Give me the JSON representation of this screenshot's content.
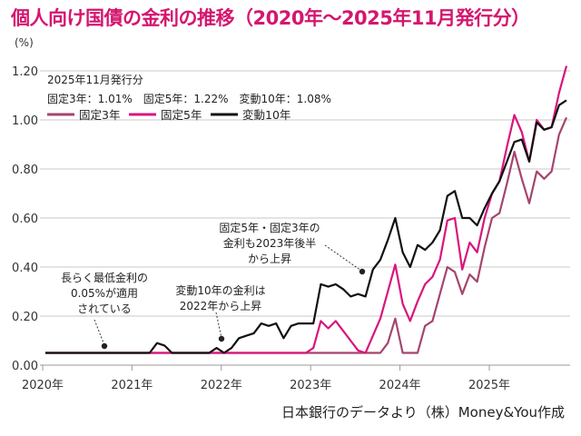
{
  "title": "個人向け国債の金利の推移（2020年～2025年11月発行分）",
  "unit_label": "(%)",
  "latest": {
    "heading": "2025年11月発行分",
    "values": "固定3年：1.01%　固定5年：1.22%　変動10年：1.08%"
  },
  "annotations": [
    "長らく最低金利の\n0.05%が適用\nされている",
    "変動10年の金利は\n2022年から上昇",
    "固定5年・固定3年の\n金利も2023年後半\nから上昇"
  ],
  "source": "日本銀行のデータより（株）Money&You作成",
  "chart_data": {
    "type": "line",
    "title": "個人向け国債の金利の推移（2020年～2025年11月発行分）",
    "ylabel": "(%)",
    "ylim": [
      0,
      1.2
    ],
    "yticks": [
      "0.00",
      "0.20",
      "0.40",
      "0.60",
      "0.80",
      "1.00",
      "1.20"
    ],
    "xticks": [
      "2020年",
      "2021年",
      "2022年",
      "2023年",
      "2024年",
      "2025年"
    ],
    "x_range": [
      "2020-01",
      "2025-11"
    ],
    "grid": true,
    "legend_position": "top-left",
    "series": [
      {
        "name": "固定3年",
        "color": "#a4456f",
        "values": [
          0.05,
          0.05,
          0.05,
          0.05,
          0.05,
          0.05,
          0.05,
          0.05,
          0.05,
          0.05,
          0.05,
          0.05,
          0.05,
          0.05,
          0.05,
          0.05,
          0.05,
          0.05,
          0.05,
          0.05,
          0.05,
          0.05,
          0.05,
          0.05,
          0.05,
          0.05,
          0.05,
          0.05,
          0.05,
          0.05,
          0.05,
          0.05,
          0.05,
          0.05,
          0.05,
          0.05,
          0.05,
          0.05,
          0.05,
          0.05,
          0.05,
          0.05,
          0.05,
          0.05,
          0.05,
          0.05,
          0.09,
          0.19,
          0.05,
          0.05,
          0.05,
          0.16,
          0.18,
          0.29,
          0.4,
          0.38,
          0.29,
          0.37,
          0.34,
          0.48,
          0.6,
          0.62,
          0.74,
          0.87,
          0.76,
          0.66,
          0.79,
          0.76,
          0.79,
          0.94,
          1.01
        ]
      },
      {
        "name": "固定5年",
        "color": "#d8157d",
        "values": [
          0.05,
          0.05,
          0.05,
          0.05,
          0.05,
          0.05,
          0.05,
          0.05,
          0.05,
          0.05,
          0.05,
          0.05,
          0.05,
          0.05,
          0.05,
          0.05,
          0.05,
          0.05,
          0.05,
          0.05,
          0.05,
          0.05,
          0.05,
          0.05,
          0.05,
          0.05,
          0.05,
          0.05,
          0.05,
          0.05,
          0.05,
          0.05,
          0.05,
          0.05,
          0.05,
          0.05,
          0.07,
          0.18,
          0.15,
          0.18,
          0.14,
          0.1,
          0.06,
          0.05,
          0.12,
          0.19,
          0.3,
          0.41,
          0.25,
          0.18,
          0.26,
          0.33,
          0.36,
          0.43,
          0.59,
          0.6,
          0.39,
          0.5,
          0.46,
          0.6,
          0.7,
          0.75,
          0.89,
          1.02,
          0.95,
          0.83,
          1.0,
          0.96,
          0.97,
          1.11,
          1.22
        ]
      },
      {
        "name": "変動10年",
        "color": "#111111",
        "values": [
          0.05,
          0.05,
          0.05,
          0.05,
          0.05,
          0.05,
          0.05,
          0.05,
          0.05,
          0.05,
          0.05,
          0.05,
          0.05,
          0.05,
          0.05,
          0.09,
          0.08,
          0.05,
          0.05,
          0.05,
          0.05,
          0.05,
          0.05,
          0.07,
          0.05,
          0.07,
          0.11,
          0.12,
          0.13,
          0.17,
          0.16,
          0.17,
          0.11,
          0.16,
          0.17,
          0.17,
          0.17,
          0.33,
          0.32,
          0.33,
          0.31,
          0.28,
          0.29,
          0.28,
          0.39,
          0.43,
          0.51,
          0.6,
          0.46,
          0.4,
          0.49,
          0.47,
          0.5,
          0.55,
          0.69,
          0.71,
          0.6,
          0.6,
          0.57,
          0.64,
          0.7,
          0.75,
          0.83,
          0.91,
          0.92,
          0.83,
          0.99,
          0.96,
          0.97,
          1.06,
          1.08
        ]
      }
    ]
  }
}
